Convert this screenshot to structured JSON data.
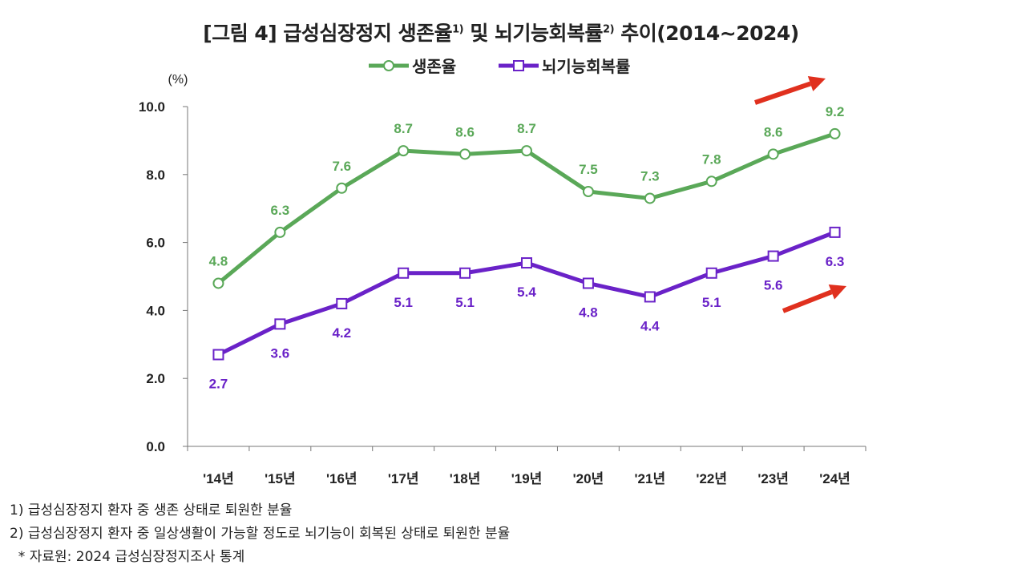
{
  "title": {
    "prefix": "[그림 4] 급성심장정지 생존율",
    "sup1": "1)",
    "middle": " 및 뇌기능회복률",
    "sup2": "2)",
    "suffix": " 추이(2014~2024)"
  },
  "chart_data": {
    "type": "line",
    "ylabel": "(%)",
    "ylim": [
      0,
      10
    ],
    "yticks": [
      "0.0",
      "2.0",
      "4.0",
      "6.0",
      "8.0",
      "10.0"
    ],
    "categories": [
      "'14년",
      "'15년",
      "'16년",
      "'17년",
      "'18년",
      "'19년",
      "'20년",
      "'21년",
      "'22년",
      "'23년",
      "'24년"
    ],
    "grid": false,
    "legend_placement": "top-center",
    "series": [
      {
        "name": "생존율",
        "color": "#5aa858",
        "marker": "circle",
        "labels": "above",
        "values": [
          4.8,
          6.3,
          7.6,
          8.7,
          8.6,
          8.7,
          7.5,
          7.3,
          7.8,
          8.6,
          9.2
        ]
      },
      {
        "name": "뇌기능회복률",
        "color": "#6a22c8",
        "marker": "square",
        "labels": "below",
        "values": [
          2.7,
          3.6,
          4.2,
          5.1,
          5.1,
          5.4,
          4.8,
          4.4,
          5.1,
          5.6,
          6.3
        ]
      }
    ],
    "annotations": [
      {
        "type": "arrow",
        "color": "#e0301e",
        "direction": "up-right"
      },
      {
        "type": "arrow",
        "color": "#e0301e",
        "direction": "up-right"
      }
    ]
  },
  "notes": [
    "1) 급성심장정지 환자 중 생존 상태로 퇴원한 분율",
    "2) 급성심장정지 환자 중 일상생활이 가능할 정도로 뇌기능이 회복된 상태로 퇴원한 분율",
    "  * 자료원: 2024 급성심장정지조사 통계"
  ]
}
